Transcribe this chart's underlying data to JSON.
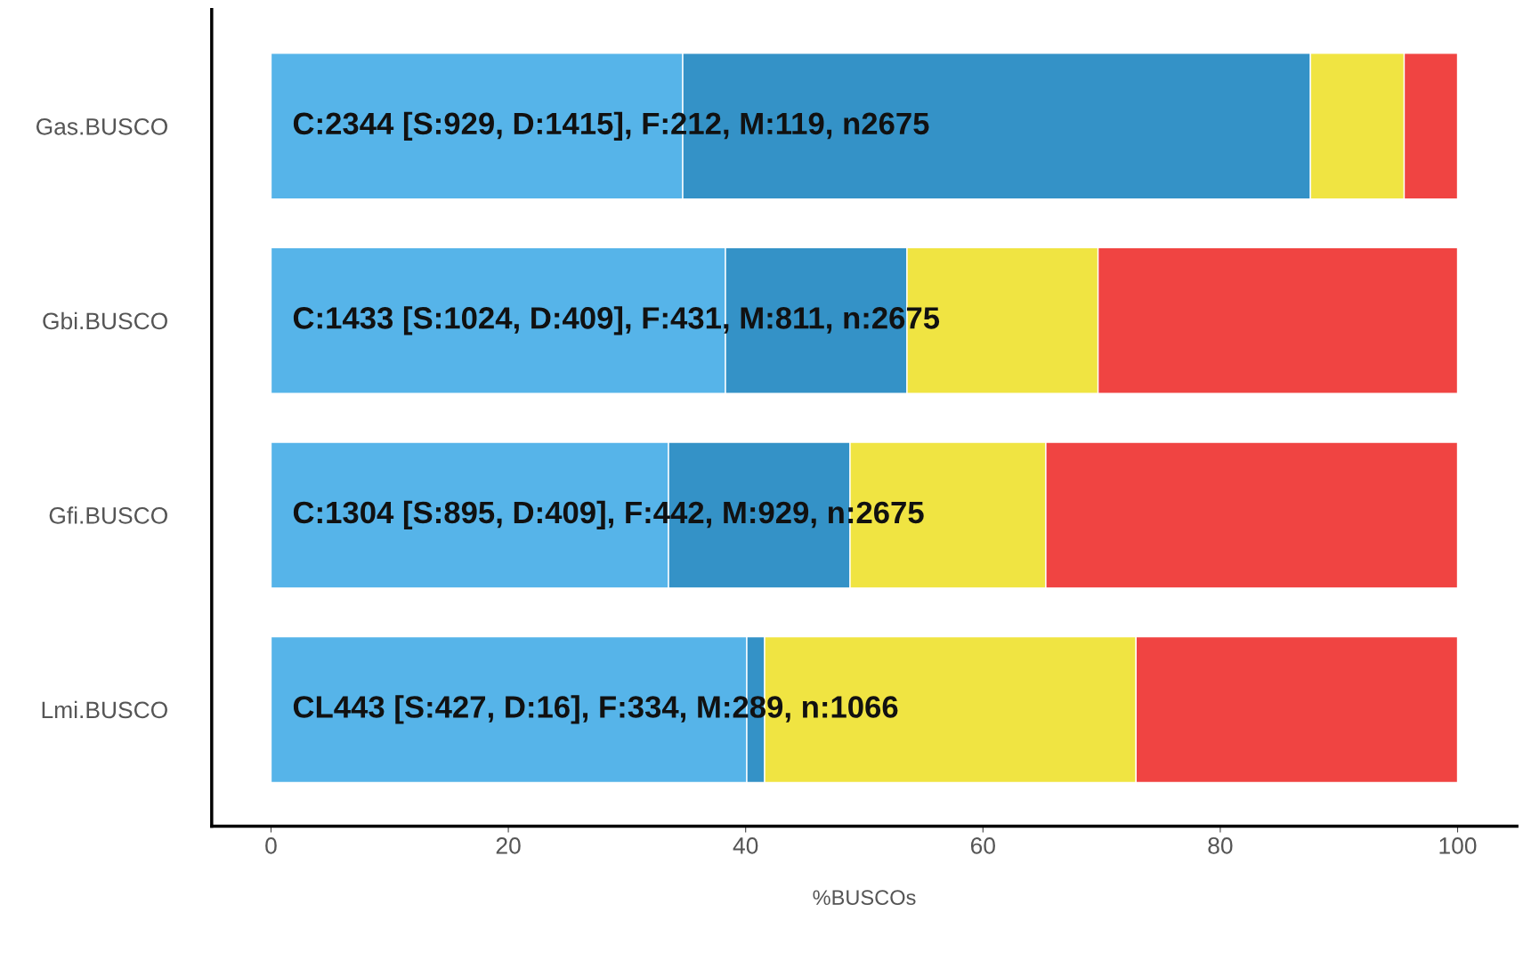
{
  "chart_data": {
    "type": "bar",
    "orientation": "horizontal",
    "stacked": true,
    "categories": [
      "Gas.BUSCO",
      "Gbi.BUSCO",
      "Gfi.BUSCO",
      "Lmi.BUSCO"
    ],
    "series": [
      {
        "color": "#56b4e9",
        "values": [
          34.7,
          38.3,
          33.5,
          40.1
        ]
      },
      {
        "color": "#3492c7",
        "values": [
          52.9,
          15.3,
          15.3,
          1.5
        ]
      },
      {
        "color": "#f0e442",
        "values": [
          7.9,
          16.1,
          16.5,
          31.3
        ]
      },
      {
        "color": "#f04442",
        "values": [
          4.5,
          30.3,
          34.7,
          27.1
        ]
      }
    ],
    "xlabel": "%BUSCOs",
    "xlim": [
      -5,
      105
    ],
    "xticks": [
      0,
      20,
      40,
      60,
      80,
      100
    ],
    "annotations": [
      "C:2344 [S:929, D:1415], F:212, M:119, n2675",
      "C:1433 [S:1024, D:409], F:431, M:811, n:2675",
      "C:1304 [S:895, D:409], F:442, M:929, n:2675",
      "CL443 [S:427, D:16], F:334, M:289, n:1066"
    ],
    "grid": false,
    "legend": false
  }
}
